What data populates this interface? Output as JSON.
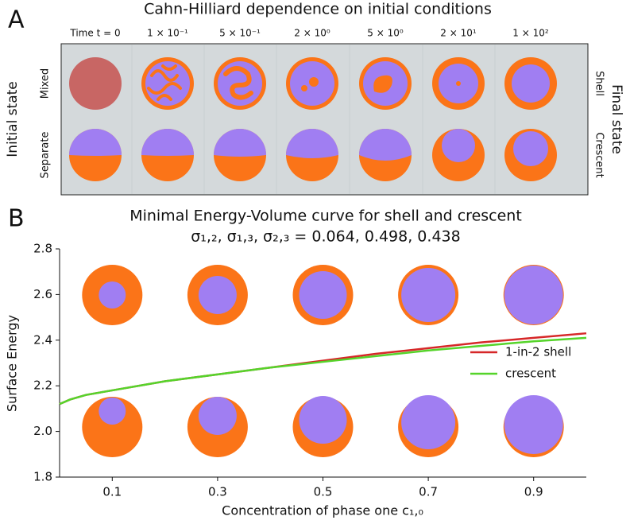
{
  "panel_a": {
    "label": "A",
    "title": "Cahn-Hilliard dependence on initial conditions",
    "column_labels": [
      "Time t = 0",
      "1 × 10⁻¹",
      "5 × 10⁻¹",
      "2 × 10⁰",
      "5 × 10⁰",
      "2 × 10¹",
      "1 × 10²"
    ],
    "left_label": "Initial state",
    "row_labels": [
      "Mixed",
      "Separate"
    ],
    "right_label": "Final state",
    "right_row_labels": [
      "Shell",
      "Crescent"
    ]
  },
  "chart_data": {
    "type": "line",
    "panel_label": "B",
    "title": "Minimal Energy-Volume curve for shell and crescent",
    "subtitle": "σ₁,₂, σ₁,₃, σ₂,₃ = 0.064, 0.498, 0.438",
    "x_label": "Concentration of phase one c₁,₀",
    "y_label": "Surface Energy",
    "x": [
      0,
      0.02,
      0.05,
      0.1,
      0.2,
      0.3,
      0.4,
      0.5,
      0.6,
      0.7,
      0.8,
      0.9,
      1.0
    ],
    "series": [
      {
        "name": "1-in-2 shell",
        "color": "#d62728",
        "values": [
          2.12,
          2.14,
          2.16,
          2.18,
          2.22,
          2.25,
          2.28,
          2.31,
          2.34,
          2.365,
          2.39,
          2.41,
          2.43
        ]
      },
      {
        "name": "crescent",
        "color": "#55d42a",
        "values": [
          2.12,
          2.14,
          2.16,
          2.18,
          2.22,
          2.25,
          2.28,
          2.305,
          2.33,
          2.355,
          2.375,
          2.395,
          2.41
        ]
      }
    ],
    "xlim": [
      0,
      1
    ],
    "xticks": [
      0.1,
      0.3,
      0.5,
      0.7,
      0.9
    ],
    "ylim": [
      1.8,
      2.8
    ],
    "yticks": [
      1.8,
      {
        "value": 2,
        "label": "2.0"
      },
      2.2,
      2.4,
      2.6,
      2.8
    ]
  }
}
